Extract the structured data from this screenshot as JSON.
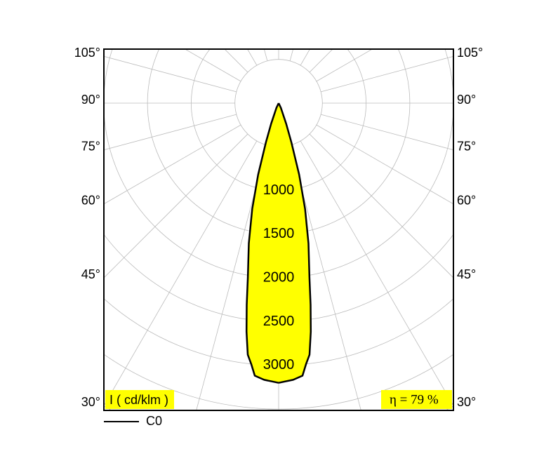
{
  "chart_data": {
    "type": "polar",
    "angles": [
      0,
      3,
      5,
      6,
      7,
      8,
      9,
      10,
      12,
      14,
      16,
      18,
      20,
      25,
      30
    ],
    "series": [
      {
        "name": "C0",
        "color": "#ffff00",
        "values": [
          3200,
          3170,
          3130,
          3000,
          2900,
          2640,
          2335,
          2030,
          1640,
          1250,
          850,
          470,
          250,
          60,
          0
        ]
      }
    ],
    "rlim": [
      0,
      4000
    ],
    "rgrid_step": 500,
    "agrid_step": 15,
    "rticks": [
      1000,
      1500,
      2000,
      2500,
      3000
    ],
    "angle_ticks": [
      {
        "value": 105,
        "label": "105°"
      },
      {
        "value": 90,
        "label": "90°"
      },
      {
        "value": 75,
        "label": "75°"
      },
      {
        "value": 60,
        "label": "60°"
      },
      {
        "value": 45,
        "label": "45°"
      },
      {
        "value": 30,
        "label": "30°"
      }
    ],
    "unit_label": "I ( cd/klm )",
    "efficiency_label": "η = 79 %",
    "grid": true
  }
}
